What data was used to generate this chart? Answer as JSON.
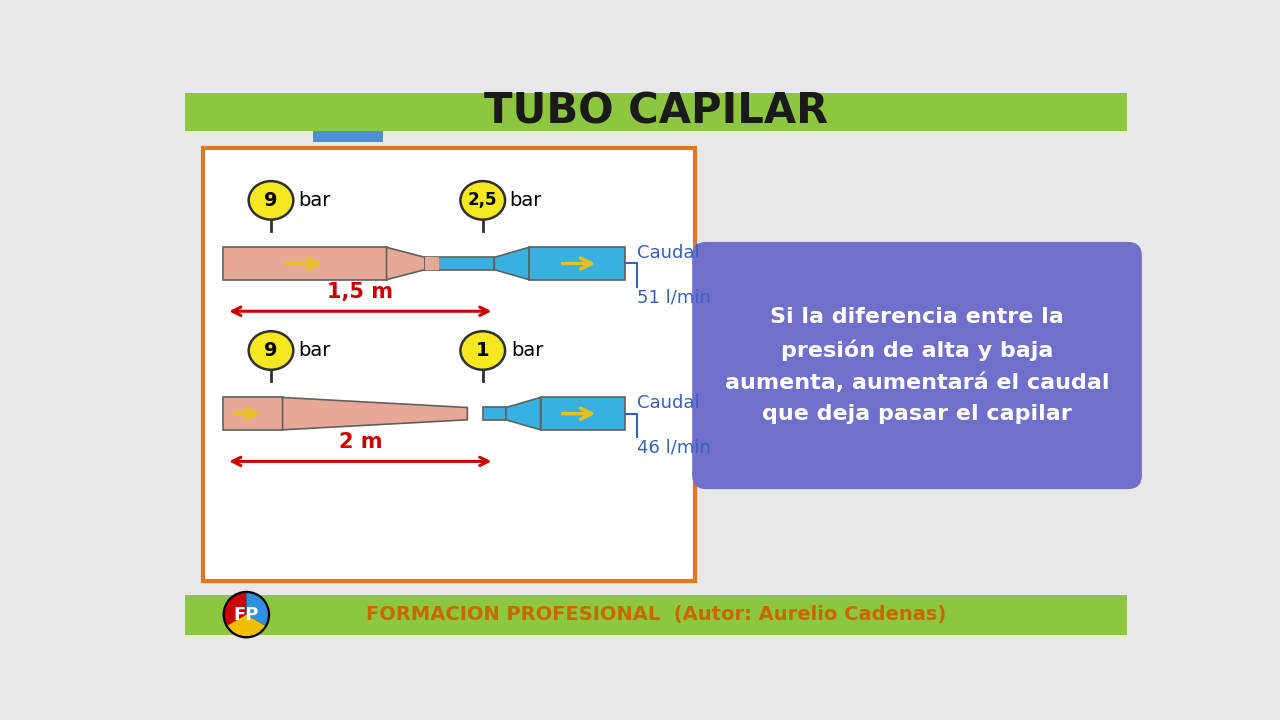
{
  "title": "TUBO CAPILAR",
  "bg_color": "#e8e8e8",
  "title_bg": "#8dc63f",
  "title_color": "#1a1a1a",
  "box_border": "#e07820",
  "box_bg": "#ffffff",
  "gauge_color": "#f5e820",
  "pipe_salmon": "#e8a898",
  "pipe_blue": "#38b0e0",
  "arrow_color": "#e8c020",
  "text_blue": "#3860c0",
  "text_red": "#cc0000",
  "info_box_color": "#7070cc",
  "info_text_color": "#ffffff",
  "footer_bg": "#8dc63f",
  "footer_text_color": "#cc6600",
  "footer_text": "FORMACION PROFESIONAL  (Autor: Aurelio Cadenas)",
  "info_text": "Si la diferencia entre la\npresión de alta y baja\naumenta, aumentará el caudal\nque deja pasar el capilar"
}
